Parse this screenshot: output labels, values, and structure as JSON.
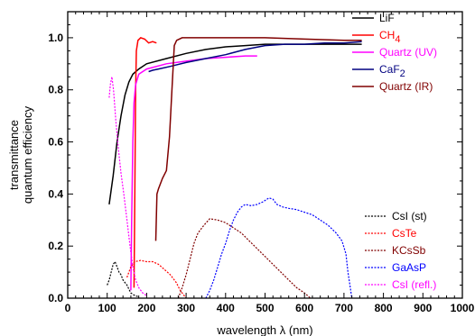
{
  "chart_data": {
    "type": "line",
    "title": "",
    "xlabel": "wavelength  λ (nm)",
    "ylabel": [
      "transmittance",
      "quantum efficiency"
    ],
    "xlim": [
      0,
      1000
    ],
    "ylim": [
      0,
      1.1
    ],
    "x_ticks": [
      0,
      100,
      200,
      300,
      400,
      500,
      600,
      700,
      800,
      900,
      1000
    ],
    "y_ticks": [
      0.0,
      0.2,
      0.4,
      0.6,
      0.8,
      1.0
    ],
    "y_tick_labels": [
      "0.0",
      "0.2",
      "0.4",
      "0.6",
      "0.8",
      "1.0"
    ],
    "grid": false,
    "legends": [
      {
        "placement": "top-right",
        "series": [
          0,
          1,
          2,
          3,
          4
        ]
      },
      {
        "placement": "bottom-right",
        "series": [
          5,
          6,
          7,
          8,
          9
        ]
      }
    ],
    "series": [
      {
        "name": "LiF",
        "sub": "",
        "color": "#000000",
        "dashed": false,
        "points": [
          [
            105,
            0.36
          ],
          [
            115,
            0.47
          ],
          [
            125,
            0.6
          ],
          [
            135,
            0.7
          ],
          [
            145,
            0.78
          ],
          [
            155,
            0.83
          ],
          [
            165,
            0.86
          ],
          [
            180,
            0.88
          ],
          [
            200,
            0.9
          ],
          [
            250,
            0.92
          ],
          [
            300,
            0.94
          ],
          [
            350,
            0.955
          ],
          [
            400,
            0.965
          ],
          [
            450,
            0.97
          ],
          [
            500,
            0.975
          ],
          [
            600,
            0.975
          ],
          [
            700,
            0.975
          ],
          [
            745,
            0.975
          ]
        ]
      },
      {
        "name": "CH",
        "sub": "4",
        "color": "#ff0000",
        "dashed": false,
        "points": [
          [
            168,
            0.04
          ],
          [
            170,
            0.4
          ],
          [
            172,
            0.8
          ],
          [
            174,
            0.95
          ],
          [
            178,
            0.99
          ],
          [
            185,
            1.0
          ],
          [
            195,
            0.995
          ],
          [
            205,
            0.98
          ],
          [
            215,
            0.985
          ],
          [
            225,
            0.98
          ]
        ]
      },
      {
        "name": "Quartz (UV)",
        "sub": "",
        "color": "#ff00ff",
        "dashed": false,
        "points": [
          [
            160,
            0.03
          ],
          [
            162,
            0.3
          ],
          [
            165,
            0.6
          ],
          [
            168,
            0.75
          ],
          [
            172,
            0.82
          ],
          [
            180,
            0.86
          ],
          [
            200,
            0.88
          ],
          [
            250,
            0.9
          ],
          [
            300,
            0.91
          ],
          [
            350,
            0.92
          ],
          [
            400,
            0.925
          ],
          [
            450,
            0.93
          ],
          [
            480,
            0.93
          ]
        ]
      },
      {
        "name": "CaF",
        "sub": "2",
        "color": "#000080",
        "dashed": false,
        "points": [
          [
            205,
            0.87
          ],
          [
            215,
            0.875
          ],
          [
            230,
            0.88
          ],
          [
            260,
            0.89
          ],
          [
            300,
            0.905
          ],
          [
            350,
            0.92
          ],
          [
            400,
            0.935
          ],
          [
            450,
            0.955
          ],
          [
            500,
            0.97
          ],
          [
            550,
            0.975
          ],
          [
            600,
            0.975
          ],
          [
            650,
            0.98
          ],
          [
            700,
            0.98
          ],
          [
            745,
            0.985
          ]
        ]
      },
      {
        "name": "Quartz (IR)",
        "sub": "",
        "color": "#800000",
        "dashed": false,
        "points": [
          [
            223,
            0.22
          ],
          [
            226,
            0.4
          ],
          [
            230,
            0.42
          ],
          [
            240,
            0.46
          ],
          [
            250,
            0.49
          ],
          [
            258,
            0.62
          ],
          [
            264,
            0.8
          ],
          [
            270,
            0.97
          ],
          [
            276,
            0.99
          ],
          [
            290,
            1.0
          ],
          [
            350,
            1.0
          ],
          [
            400,
            1.0
          ],
          [
            500,
            1.0
          ],
          [
            600,
            0.995
          ],
          [
            700,
            0.99
          ],
          [
            745,
            0.99
          ]
        ]
      },
      {
        "name": "CsI (st)",
        "sub": "",
        "color": "#000000",
        "dashed": true,
        "points": [
          [
            100,
            0.05
          ],
          [
            105,
            0.07
          ],
          [
            110,
            0.1
          ],
          [
            115,
            0.13
          ],
          [
            120,
            0.14
          ],
          [
            125,
            0.12
          ],
          [
            130,
            0.1
          ],
          [
            135,
            0.09
          ],
          [
            140,
            0.07
          ],
          [
            145,
            0.06
          ],
          [
            150,
            0.05
          ],
          [
            155,
            0.035
          ],
          [
            160,
            0.02
          ],
          [
            165,
            0.015
          ],
          [
            170,
            0.01
          ],
          [
            180,
            0.005
          ]
        ]
      },
      {
        "name": "CsTe",
        "sub": "",
        "color": "#ff0000",
        "dashed": true,
        "points": [
          [
            150,
            0.08
          ],
          [
            160,
            0.12
          ],
          [
            170,
            0.14
          ],
          [
            185,
            0.145
          ],
          [
            200,
            0.14
          ],
          [
            215,
            0.14
          ],
          [
            230,
            0.13
          ],
          [
            245,
            0.11
          ],
          [
            260,
            0.09
          ],
          [
            275,
            0.06
          ],
          [
            285,
            0.03
          ],
          [
            295,
            0.01
          ],
          [
            300,
            0.0
          ]
        ]
      },
      {
        "name": "KCsSb",
        "sub": "",
        "color": "#800000",
        "dashed": true,
        "points": [
          [
            280,
            0.0
          ],
          [
            290,
            0.04
          ],
          [
            300,
            0.09
          ],
          [
            310,
            0.15
          ],
          [
            320,
            0.21
          ],
          [
            330,
            0.25
          ],
          [
            345,
            0.28
          ],
          [
            360,
            0.305
          ],
          [
            380,
            0.3
          ],
          [
            400,
            0.29
          ],
          [
            420,
            0.27
          ],
          [
            440,
            0.25
          ],
          [
            460,
            0.22
          ],
          [
            480,
            0.19
          ],
          [
            500,
            0.16
          ],
          [
            520,
            0.13
          ],
          [
            540,
            0.1
          ],
          [
            560,
            0.07
          ],
          [
            580,
            0.04
          ],
          [
            600,
            0.02
          ],
          [
            615,
            0.0
          ]
        ]
      },
      {
        "name": "GaAsP",
        "sub": "",
        "color": "#0000ff",
        "dashed": true,
        "points": [
          [
            350,
            0.0
          ],
          [
            360,
            0.03
          ],
          [
            370,
            0.07
          ],
          [
            380,
            0.12
          ],
          [
            390,
            0.17
          ],
          [
            400,
            0.21
          ],
          [
            410,
            0.26
          ],
          [
            420,
            0.3
          ],
          [
            430,
            0.33
          ],
          [
            440,
            0.35
          ],
          [
            450,
            0.36
          ],
          [
            465,
            0.355
          ],
          [
            480,
            0.36
          ],
          [
            495,
            0.37
          ],
          [
            510,
            0.385
          ],
          [
            520,
            0.38
          ],
          [
            530,
            0.36
          ],
          [
            545,
            0.35
          ],
          [
            560,
            0.345
          ],
          [
            580,
            0.34
          ],
          [
            600,
            0.33
          ],
          [
            620,
            0.32
          ],
          [
            640,
            0.3
          ],
          [
            660,
            0.28
          ],
          [
            680,
            0.25
          ],
          [
            695,
            0.22
          ],
          [
            705,
            0.17
          ],
          [
            710,
            0.1
          ],
          [
            715,
            0.05
          ],
          [
            720,
            0.0
          ]
        ]
      },
      {
        "name": "CsI (refl.)",
        "sub": "",
        "color": "#ff00ff",
        "dashed": true,
        "points": [
          [
            105,
            0.77
          ],
          [
            108,
            0.82
          ],
          [
            112,
            0.85
          ],
          [
            116,
            0.8
          ],
          [
            122,
            0.68
          ],
          [
            128,
            0.58
          ],
          [
            135,
            0.48
          ],
          [
            142,
            0.4
          ],
          [
            150,
            0.3
          ],
          [
            158,
            0.2
          ],
          [
            165,
            0.12
          ],
          [
            172,
            0.07
          ],
          [
            180,
            0.04
          ],
          [
            190,
            0.02
          ],
          [
            200,
            0.01
          ]
        ]
      }
    ]
  }
}
